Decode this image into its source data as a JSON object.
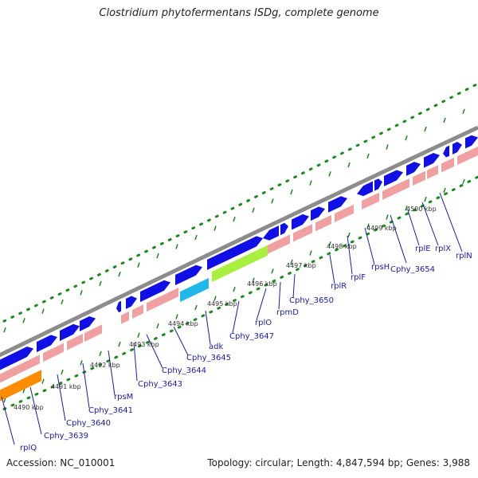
{
  "title": "Clostridium phytofermentans ISDg, complete genome",
  "accession": "Accession: NC_010001",
  "stats": "Topology: circular; Length: 4,847,594 bp; Genes: 3,988",
  "colors": {
    "backbone": "#8c8c8c",
    "forward_cds": "#1010e6",
    "reverse_cds": "#f0a0a0",
    "tick": "#1a8a1a",
    "label": "#1a1aa8",
    "orange_feature": "#ff8c00",
    "cyan_feature": "#20b8e8",
    "green_feature": "#a8f040"
  },
  "scale_labels": [
    "4490 kbp",
    "4491 kbp",
    "4492 kbp",
    "4493 kbp",
    "4494 kbp",
    "4495 kbp",
    "4496 kbp",
    "4497 kbp",
    "4498 kbp",
    "4499 kbp",
    "4500 kbp"
  ],
  "gene_labels": [
    "rplQ",
    "Cphy_3639",
    "Cphy_3640",
    "Cphy_3641",
    "rpsM",
    "Cphy_3643",
    "Cphy_3644",
    "Cphy_3645",
    "adk",
    "Cphy_3647",
    "rplO",
    "rpmD",
    "Cphy_3650",
    "rplR",
    "rplF",
    "rpsH",
    "Cphy_3654",
    "rplE",
    "rplX",
    "rplN"
  ]
}
